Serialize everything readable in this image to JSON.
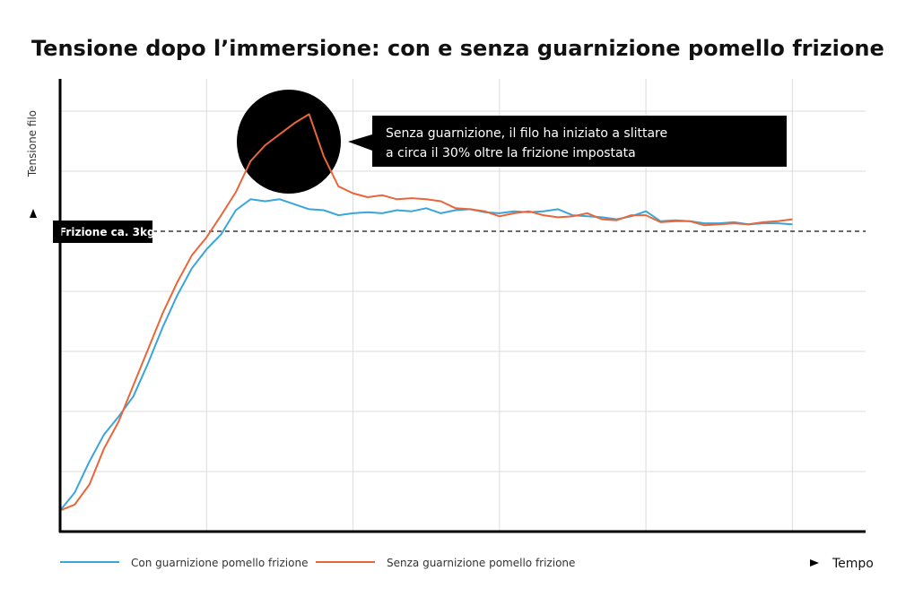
{
  "chart_data": {
    "type": "line",
    "title": "Tensione dopo l’immersione: con e senza guarnizione pomello frizione",
    "y_label": "Tensione filo",
    "x_label": "Tempo",
    "annotation": [
      "Senza guarnizione, il filo ha iniziato a slittare",
      "a circa il 30% oltre la frizione impostata"
    ],
    "reference_line": {
      "value": 3,
      "label": "Frizione ca. 3kg"
    },
    "x": [
      0,
      1,
      2,
      3,
      4,
      5,
      6,
      7,
      8,
      9,
      10,
      11,
      12,
      13,
      14,
      15,
      16,
      17,
      18,
      19,
      20,
      21,
      22,
      23,
      24,
      25,
      26,
      27,
      28,
      29,
      30,
      31,
      32,
      33,
      34,
      35,
      36,
      37,
      38,
      39,
      40,
      41,
      42,
      43,
      44,
      45,
      46,
      47,
      48,
      49,
      50
    ],
    "series": [
      {
        "name": "Con guarnizione pomello frizione",
        "color": "#3aa5db",
        "values": [
          0.21,
          0.39,
          0.7,
          0.97,
          1.15,
          1.35,
          1.68,
          2.04,
          2.36,
          2.63,
          2.82,
          2.97,
          3.21,
          3.32,
          3.3,
          3.32,
          3.27,
          3.22,
          3.21,
          3.16,
          3.18,
          3.19,
          3.18,
          3.21,
          3.2,
          3.23,
          3.18,
          3.21,
          3.22,
          3.19,
          3.18,
          3.2,
          3.19,
          3.2,
          3.22,
          3.16,
          3.15,
          3.14,
          3.12,
          3.15,
          3.2,
          3.1,
          3.11,
          3.1,
          3.08,
          3.08,
          3.09,
          3.07,
          3.08,
          3.08,
          3.07
        ]
      },
      {
        "name": "Senza guarnizione pomello frizione",
        "color": "#e8673a",
        "values": [
          0.21,
          0.27,
          0.47,
          0.83,
          1.1,
          1.46,
          1.82,
          2.18,
          2.49,
          2.76,
          2.94,
          3.16,
          3.39,
          3.7,
          3.86,
          3.97,
          4.08,
          4.17,
          3.75,
          3.45,
          3.38,
          3.34,
          3.36,
          3.32,
          3.33,
          3.32,
          3.3,
          3.23,
          3.22,
          3.2,
          3.15,
          3.18,
          3.2,
          3.16,
          3.14,
          3.15,
          3.18,
          3.12,
          3.11,
          3.16,
          3.16,
          3.09,
          3.1,
          3.1,
          3.06,
          3.07,
          3.08,
          3.07,
          3.09,
          3.1,
          3.12
        ]
      }
    ],
    "xlim": [
      0,
      55
    ],
    "ylim": [
      0,
      4.5
    ],
    "xticks": [
      10,
      20,
      30,
      40,
      50
    ],
    "yticks": [
      0.6,
      1.2,
      1.8,
      2.4,
      3.6,
      4.2
    ],
    "grid": true
  }
}
